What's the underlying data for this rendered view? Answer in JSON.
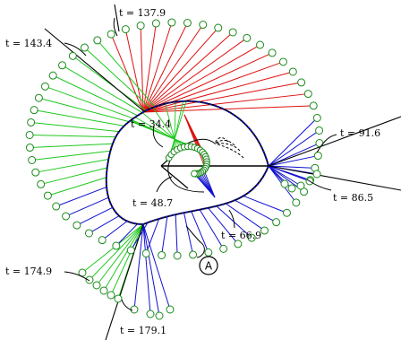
{
  "labels": {
    "t137": "t = 137.9",
    "t143": "t = 143.4",
    "t34": "t = 34.4",
    "t91": "t = 91.6",
    "t86": "t = 86.5",
    "t48": "t = 48.7",
    "t66": "t = 66.9",
    "t174": "t = 174.9",
    "t179": "t = 179.1",
    "marker": "A"
  },
  "colors": {
    "red": "#e01010",
    "green": "#1ec81e",
    "blue": "#1010d0",
    "circle": "#1a8a1a",
    "black": "#000000"
  }
}
